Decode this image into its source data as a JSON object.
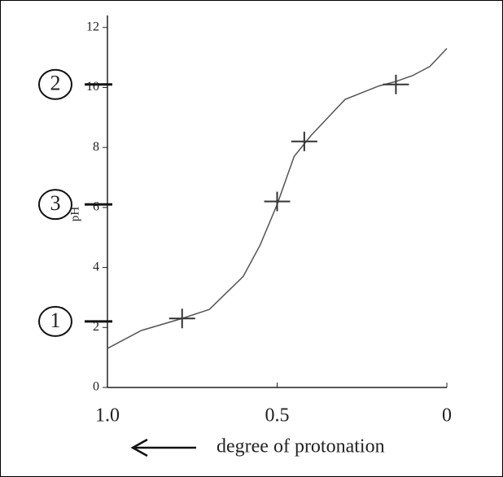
{
  "chart_data": {
    "type": "line",
    "ylabel": "pH",
    "xlabel": "degree of protonation",
    "x": [
      1.0,
      0.9,
      0.78,
      0.7,
      0.6,
      0.55,
      0.5,
      0.45,
      0.4,
      0.3,
      0.2,
      0.15,
      0.1,
      0.05,
      0
    ],
    "series": [
      {
        "name": "pH",
        "color": "#555555",
        "values": [
          1.3,
          1.9,
          2.3,
          2.6,
          3.7,
          4.75,
          6.1,
          7.7,
          8.4,
          9.6,
          10.05,
          10.2,
          10.4,
          10.7,
          11.3
        ]
      }
    ],
    "xlim": [
      1.0,
      0
    ],
    "ylim": [
      0,
      12.4
    ],
    "xticks": [
      {
        "value": 1,
        "label": "1.0"
      },
      0.5,
      0
    ],
    "yticks": [
      0,
      2,
      4,
      6,
      8,
      10,
      12
    ],
    "annotations": [
      {
        "text": "1",
        "y": 2.2
      },
      {
        "text": "2",
        "y": 10.1
      },
      {
        "text": "3",
        "y": 6.1
      }
    ],
    "marked_points": {
      "x": [
        0.78,
        0.5,
        0.42,
        0.15
      ],
      "y": [
        2.3,
        6.2,
        8.2,
        10.1
      ]
    }
  }
}
